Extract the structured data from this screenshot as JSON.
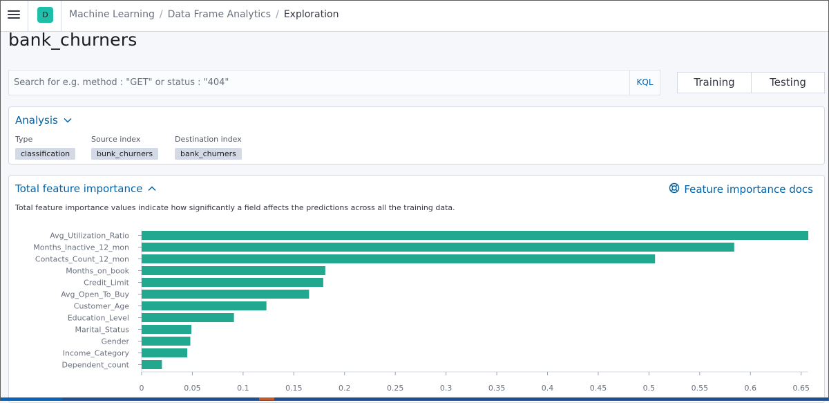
{
  "header": {
    "space_initial": "D",
    "breadcrumbs": [
      "Machine Learning",
      "Data Frame Analytics",
      "Exploration"
    ]
  },
  "page": {
    "title": "bank_churners"
  },
  "search": {
    "placeholder": "Search for e.g. method : \"GET\" or status : \"404\"",
    "language_button": "KQL"
  },
  "view_toggle": {
    "options": [
      "Training",
      "Testing"
    ]
  },
  "analysis": {
    "title": "Analysis",
    "stats": [
      {
        "label": "Type",
        "value": "classification"
      },
      {
        "label": "Source index",
        "value": "bunk_churners"
      },
      {
        "label": "Destination index",
        "value": "bank_churners"
      }
    ]
  },
  "feature_importance": {
    "title": "Total feature importance",
    "docs_link": "Feature importance docs",
    "description": "Total feature importance values indicate how significantly a field affects the predictions across all the training data."
  },
  "chart_data": {
    "type": "bar",
    "orientation": "horizontal",
    "categories": [
      "Avg_Utilization_Ratio",
      "Months_Inactive_12_mon",
      "Contacts_Count_12_mon",
      "Months_on_book",
      "Credit_Limit",
      "Avg_Open_To_Buy",
      "Customer_Age",
      "Education_Level",
      "Marital_Status",
      "Gender",
      "Income_Category",
      "Dependent_count"
    ],
    "values": [
      0.657,
      0.584,
      0.506,
      0.181,
      0.179,
      0.165,
      0.123,
      0.091,
      0.049,
      0.048,
      0.045,
      0.02
    ],
    "xlim": [
      0,
      0.657
    ],
    "xticks": [
      "0",
      "0.05",
      "0.1",
      "0.15",
      "0.2",
      "0.25",
      "0.3",
      "0.35",
      "0.4",
      "0.45",
      "0.5",
      "0.55",
      "0.6",
      "0.65"
    ],
    "bar_color": "#22a88f",
    "grid": false
  },
  "colors": {
    "accent": "#0061a6",
    "bar": "#22a88f",
    "avatar": "#1ebfa8"
  }
}
